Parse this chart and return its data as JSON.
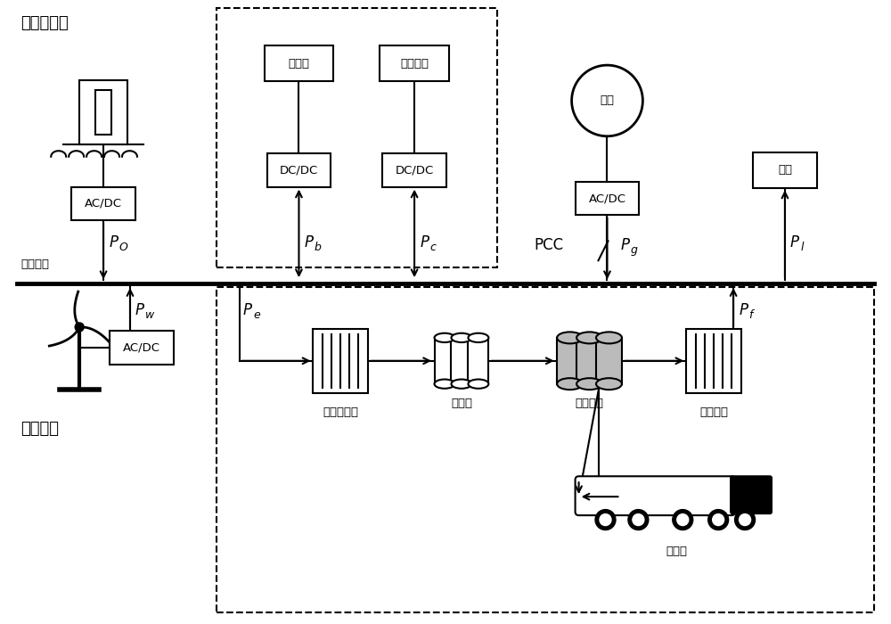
{
  "bg_color": "#ffffff",
  "title_ocean": "海洋能发电",
  "title_wind": "风力发电",
  "label_dcbus": "直流母线",
  "label_lithium": "锂电池",
  "label_supercap": "超级电容",
  "label_acdc1": "AC/DC",
  "label_dcdc1": "DC/DC",
  "label_dcdc2": "DC/DC",
  "label_grid": "电网",
  "label_acdc2": "AC/DC",
  "label_load": "负载",
  "label_acdc3": "AC/DC",
  "label_electrolyzer": "碱性电解槽",
  "label_h2storage": "氢储能",
  "label_liqh2": "液氢存储",
  "label_fuelcell": "燃料电池",
  "label_h2transport": "氢运输",
  "label_PCC": "PCC"
}
